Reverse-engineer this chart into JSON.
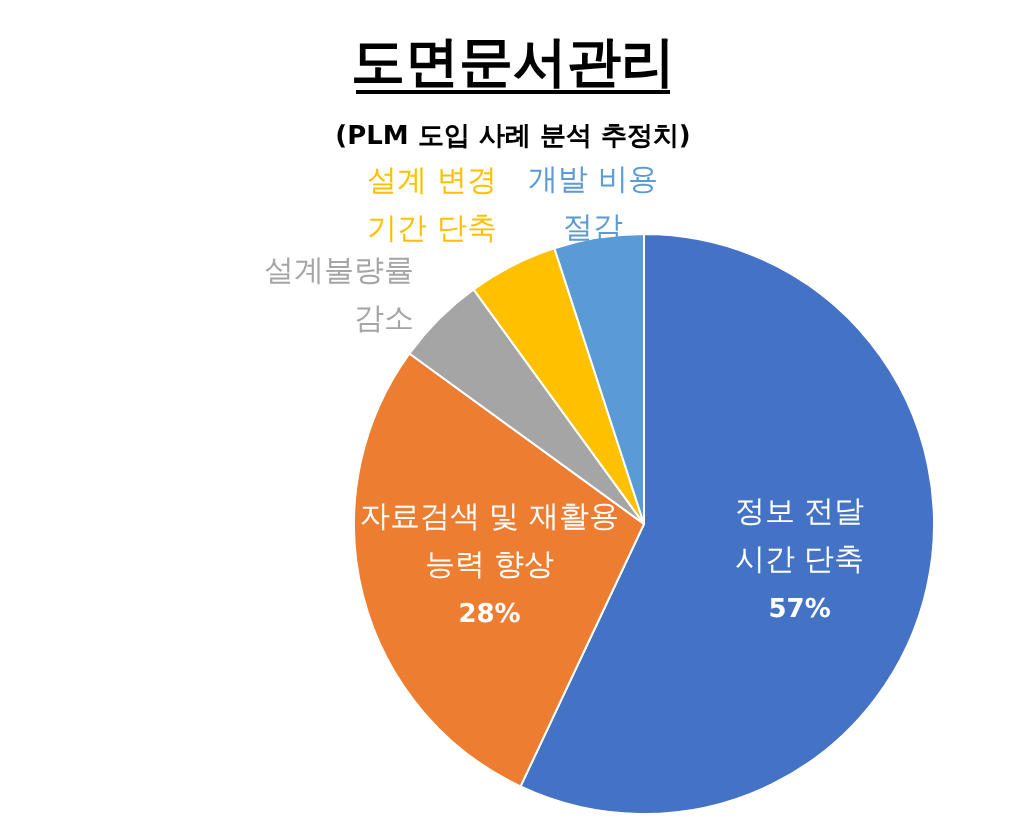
{
  "chart_data": {
    "type": "pie",
    "title": "도면문서관리",
    "subtitle": "(PLM 도입 사례 분석 추정치)",
    "categories": [
      "정보 전달 시간 단축",
      "자료검색 및 재활용 능력 향상",
      "설계불량률 감소",
      "설계 변경 기간 단축",
      "개발 비용 절감"
    ],
    "values": [
      57,
      28,
      5,
      5,
      5
    ],
    "colors": [
      "#4472c4",
      "#ed7d31",
      "#a5a5a5",
      "#ffc000",
      "#5b9bd5"
    ],
    "value_labels": [
      "57%",
      "28%",
      null,
      null,
      null
    ]
  }
}
